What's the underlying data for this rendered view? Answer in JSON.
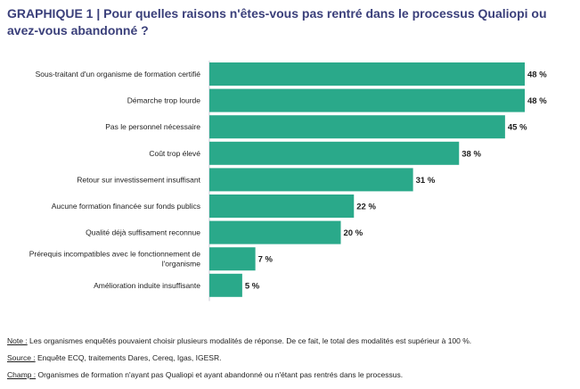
{
  "header": {
    "title": "GRAPHIQUE 1 | Pour quelles raisons n'êtes-vous pas rentré dans le processus Qualiopi ou avez-vous abandonné ?"
  },
  "chart_data": {
    "type": "bar",
    "orientation": "horizontal",
    "title": "GRAPHIQUE 1 | Pour quelles raisons n'êtes-vous pas rentré dans le processus Qualiopi ou avez-vous abandonné ?",
    "categories": [
      "Sous-traitant d'un organisme de formation certifié",
      "Démarche trop lourde",
      "Pas le personnel nécessaire",
      "Coût trop élevé",
      "Retour sur investissement insuffisant",
      "Aucune formation financée sur fonds publics",
      "Qualité déjà suffisament reconnue",
      "Prérequis incompatibles avec le fonctionnement de l'organisme",
      "Amélioration induite insuffisante"
    ],
    "values": [
      48,
      48,
      45,
      38,
      31,
      22,
      20,
      7,
      5
    ],
    "value_labels": [
      "48 %",
      "48 %",
      "45 %",
      "38 %",
      "31 %",
      "22 %",
      "20 %",
      "7 %",
      "5 %"
    ],
    "xlim": [
      0,
      48
    ],
    "grid": false,
    "bar_color": "#2aa98a",
    "axis_color": "#c9c9d6"
  },
  "notes": [
    {
      "label": "Note :",
      "text": " Les organismes enquêtés pouvaient choisir plusieurs modalités de réponse. De ce fait, le total des modalités est supérieur à 100 %."
    },
    {
      "label": "Source :",
      "text": " Enquête ECQ, traitements Dares, Cereq, Igas, IGESR."
    },
    {
      "label": "Champ :",
      "text": " Organismes de formation n'ayant pas Qualiopi et ayant abandonné ou n'étant pas rentrés dans le processus."
    }
  ]
}
